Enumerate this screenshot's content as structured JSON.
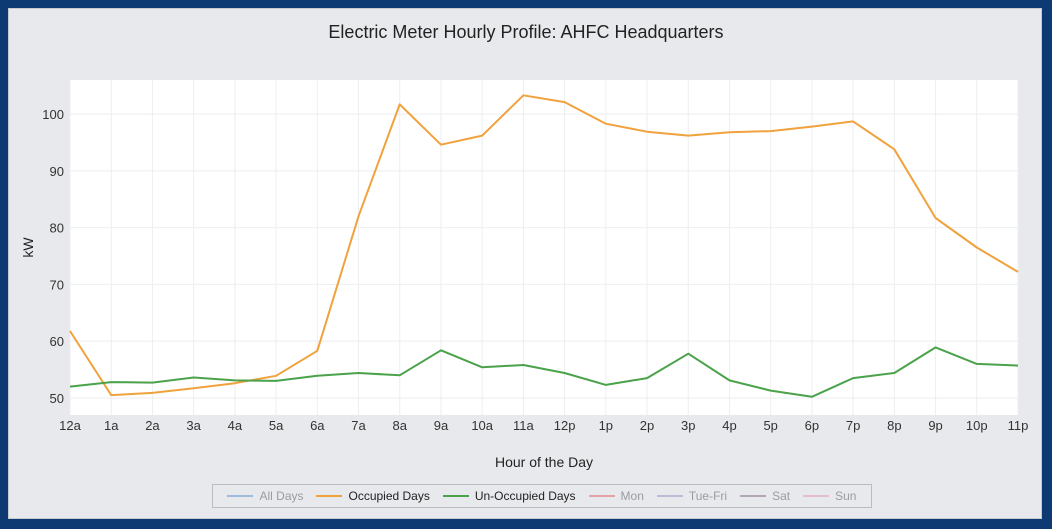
{
  "chart_data": {
    "type": "line",
    "title": "Electric Meter Hourly Profile: AHFC Headquarters",
    "xlabel": "Hour of the Day",
    "ylabel": "kW",
    "categories": [
      "12a",
      "1a",
      "2a",
      "3a",
      "4a",
      "5a",
      "6a",
      "7a",
      "8a",
      "9a",
      "10a",
      "11a",
      "12p",
      "1p",
      "2p",
      "3p",
      "4p",
      "5p",
      "6p",
      "7p",
      "8p",
      "9p",
      "10p",
      "11p"
    ],
    "yticks": [
      50,
      60,
      70,
      80,
      90,
      100
    ],
    "ylim": [
      47,
      106
    ],
    "grid": true,
    "legend_position": "bottom",
    "series": [
      {
        "name": "Occupied Days",
        "color": "#f0a23c",
        "values": [
          61.8,
          50.5,
          50.9,
          51.7,
          52.6,
          53.9,
          58.3,
          82.0,
          101.7,
          94.6,
          96.2,
          103.3,
          102.1,
          98.3,
          96.9,
          96.2,
          96.8,
          97.0,
          97.8,
          98.7,
          93.8,
          81.7,
          76.5,
          72.2
        ]
      },
      {
        "name": "Un-Occupied Days",
        "color": "#4aa24a",
        "values": [
          52.0,
          52.8,
          52.7,
          53.6,
          53.1,
          53.0,
          53.9,
          54.4,
          54.0,
          58.4,
          55.4,
          55.8,
          54.4,
          52.3,
          53.5,
          57.8,
          53.1,
          51.3,
          50.2,
          53.5,
          54.4,
          58.9,
          56.0,
          55.7
        ]
      }
    ],
    "legend": [
      {
        "name": "All Days",
        "color": "#7fa7d9",
        "active": false
      },
      {
        "name": "Occupied Days",
        "color": "#f0a23c",
        "active": true
      },
      {
        "name": "Un-Occupied Days",
        "color": "#4aa24a",
        "active": true
      },
      {
        "name": "Mon",
        "color": "#e0858a",
        "active": false
      },
      {
        "name": "Tue-Fri",
        "color": "#a8a8d0",
        "active": false
      },
      {
        "name": "Sat",
        "color": "#9a8aa0",
        "active": false
      },
      {
        "name": "Sun",
        "color": "#e4a8c8",
        "active": false
      }
    ]
  }
}
